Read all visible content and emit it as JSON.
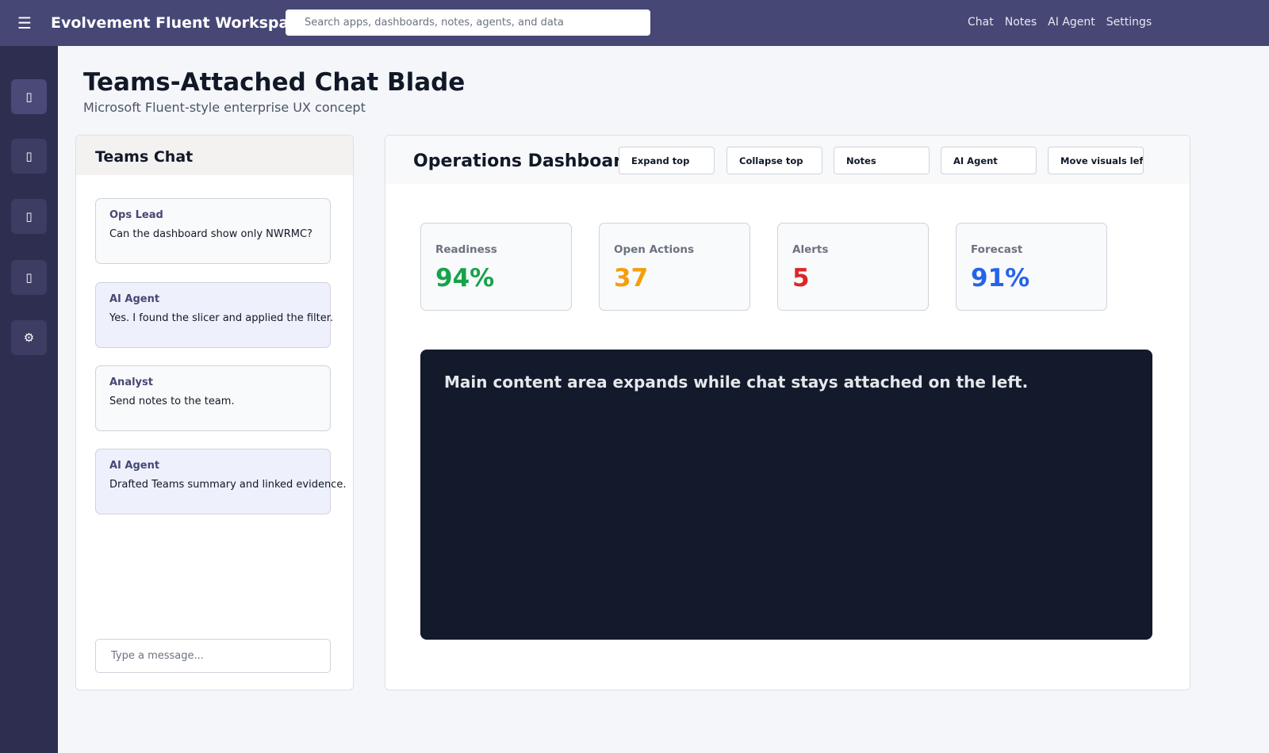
{
  "topbar": {
    "menu_icon": "☰",
    "app_title": "Evolvement Fluent Workspace",
    "search_placeholder": "Search apps, dashboards, notes, agents, and data",
    "nav": [
      "Chat",
      "Notes",
      "AI Agent",
      "Settings"
    ]
  },
  "rail": {
    "items": [
      {
        "icon": "chat-icon",
        "glyph": "▯"
      },
      {
        "icon": "notes-icon",
        "glyph": "▯"
      },
      {
        "icon": "agent-icon",
        "glyph": "▯"
      },
      {
        "icon": "dashboard-icon",
        "glyph": "▯"
      },
      {
        "icon": "gear-icon",
        "glyph": "⚙"
      }
    ]
  },
  "page": {
    "title": "Teams-Attached Chat Blade",
    "subtitle": "Microsoft Fluent-style enterprise UX concept"
  },
  "chat": {
    "title": "Teams Chat",
    "messages": [
      {
        "author": "Ops Lead",
        "text": "Can the dashboard show only NWRMC?",
        "agent": false
      },
      {
        "author": "AI Agent",
        "text": "Yes. I found the slicer and applied the filter.",
        "agent": true
      },
      {
        "author": "Analyst",
        "text": "Send notes to the team.",
        "agent": false
      },
      {
        "author": "AI Agent",
        "text": "Drafted Teams summary and linked evidence.",
        "agent": true
      }
    ],
    "input_placeholder": "Type a message..."
  },
  "dashboard": {
    "title": "Operations Dashboard",
    "toolbar": [
      "Expand top",
      "Collapse top",
      "Notes",
      "AI Agent",
      "Move visuals left"
    ],
    "kpis": [
      {
        "label": "Readiness",
        "value": "94%",
        "color": "#16a34a"
      },
      {
        "label": "Open Actions",
        "value": "37",
        "color": "#f59e0b"
      },
      {
        "label": "Alerts",
        "value": "5",
        "color": "#dc2626"
      },
      {
        "label": "Forecast",
        "value": "91%",
        "color": "#2563eb"
      }
    ],
    "visual_text": "Main content area expands while chat stays attached on the left."
  }
}
